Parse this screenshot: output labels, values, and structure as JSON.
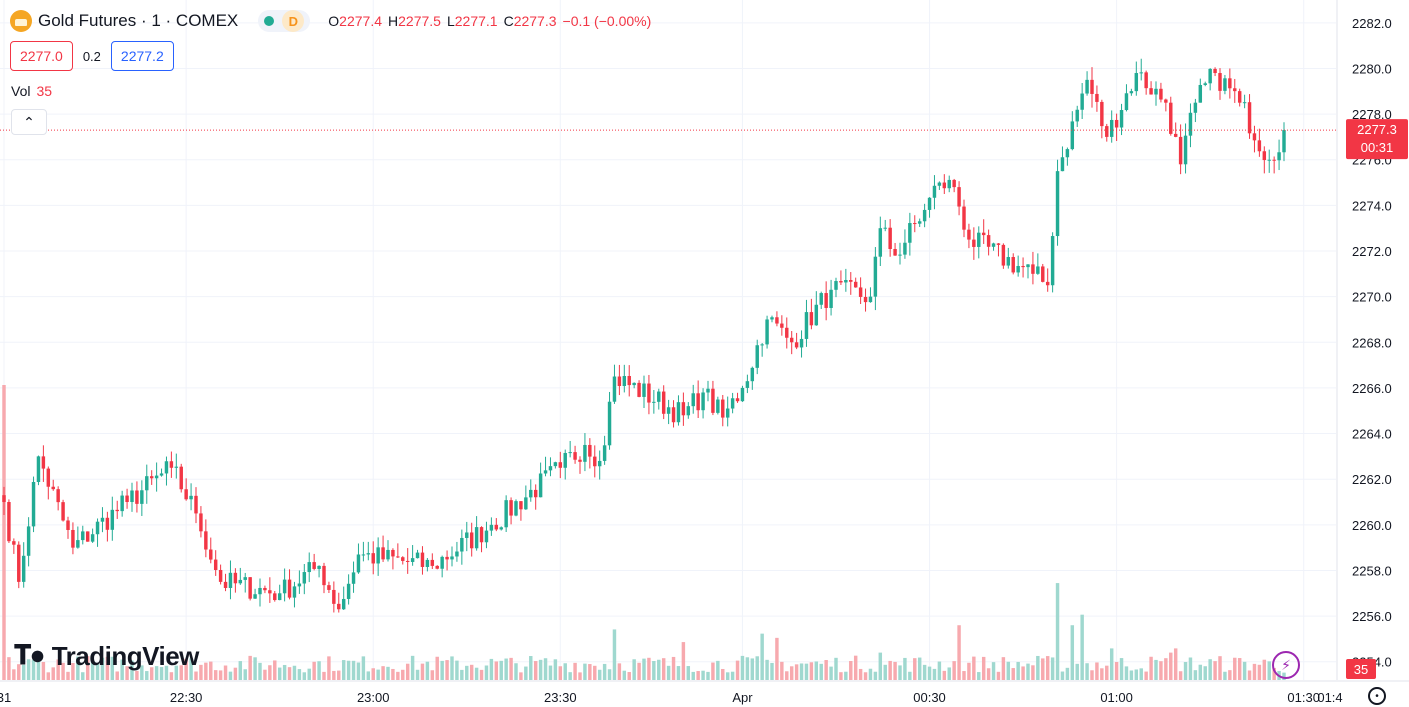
{
  "header": {
    "title": "Gold Futures · 1 · COMEX",
    "logo_icon": "gold-bars-icon",
    "status_dot_color": "#22ab94",
    "session_badge": "D",
    "ohlc": {
      "o_label": "O",
      "o": "2277.4",
      "h_label": "H",
      "h": "2277.5",
      "l_label": "L",
      "l": "2277.1",
      "c_label": "C",
      "c": "2277.3",
      "change": "−0.1 (−0.00%)"
    }
  },
  "quote": {
    "bid": "2277.0",
    "spread": "0.2",
    "ask": "2277.2"
  },
  "volume_legend": {
    "label": "Vol",
    "value": "35"
  },
  "collapse_icon": "chevron-up-icon",
  "branding": {
    "text": "TradingView",
    "icon": "tradingview-logo-icon"
  },
  "colors": {
    "up": "#22ab94",
    "down": "#f23645",
    "vol_up": "#9fd8cf",
    "vol_down": "#f7a9ae",
    "grid": "#f0f3fa"
  },
  "chart_data": {
    "type": "candlestick",
    "interval_minutes": 1,
    "y_axis": {
      "ticks": [
        2254.0,
        2256.0,
        2258.0,
        2260.0,
        2262.0,
        2264.0,
        2266.0,
        2268.0,
        2270.0,
        2272.0,
        2274.0,
        2276.0,
        2278.0,
        2280.0,
        2282.0
      ],
      "decimals": 1,
      "range": [
        2253.2,
        2283.0
      ]
    },
    "x_axis": {
      "ticks": [
        "31",
        "22:30",
        "23:00",
        "23:30",
        "Apr",
        "00:30",
        "01:00",
        "01:30",
        "01:4"
      ]
    },
    "last_price": {
      "value": "2277.3",
      "countdown": "00:31"
    },
    "last_volume": "35",
    "anchors": [
      [
        2261.0,
        0
      ],
      [
        2257.5,
        3
      ],
      [
        2263.0,
        7
      ],
      [
        2259.0,
        14
      ],
      [
        2261.0,
        25
      ],
      [
        2262.5,
        34
      ],
      [
        2260.5,
        39
      ],
      [
        2257.5,
        44
      ],
      [
        2257.0,
        56
      ],
      [
        2258.2,
        64
      ],
      [
        2256.3,
        68
      ],
      [
        2258.7,
        72
      ],
      [
        2258.2,
        87
      ],
      [
        2260.0,
        99
      ],
      [
        2262.5,
        113
      ],
      [
        2263.5,
        118
      ],
      [
        2262.8,
        121
      ],
      [
        2266.5,
        124
      ],
      [
        2264.8,
        138
      ],
      [
        2265.8,
        142
      ],
      [
        2264.7,
        146
      ],
      [
        2266.0,
        150
      ],
      [
        2269.0,
        155
      ],
      [
        2268.0,
        160
      ],
      [
        2270.3,
        168
      ],
      [
        2270.0,
        176
      ],
      [
        2273.0,
        178
      ],
      [
        2271.8,
        181
      ],
      [
        2273.8,
        187
      ],
      [
        2275.0,
        190
      ],
      [
        2274.8,
        193
      ],
      [
        2272.5,
        196
      ],
      [
        2271.0,
        209
      ],
      [
        2270.5,
        212
      ],
      [
        2275.5,
        214
      ],
      [
        2279.5,
        220
      ],
      [
        2277.0,
        224
      ],
      [
        2279.8,
        230
      ],
      [
        2278.5,
        236
      ],
      [
        2275.8,
        239
      ],
      [
        2278.5,
        242
      ],
      [
        2279.8,
        246
      ],
      [
        2278.5,
        251
      ],
      [
        2276.0,
        257
      ],
      [
        2277.3,
        260
      ]
    ],
    "volume": {
      "max": 1400,
      "base": 90,
      "spikes": [
        [
          0,
          1400
        ],
        [
          124,
          240
        ],
        [
          138,
          180
        ],
        [
          154,
          220
        ],
        [
          157,
          200
        ],
        [
          178,
          130
        ],
        [
          194,
          260
        ],
        [
          214,
          460
        ],
        [
          217,
          260
        ],
        [
          219,
          310
        ],
        [
          225,
          150
        ],
        [
          237,
          130
        ],
        [
          238,
          150
        ],
        [
          260,
          35
        ]
      ]
    }
  }
}
